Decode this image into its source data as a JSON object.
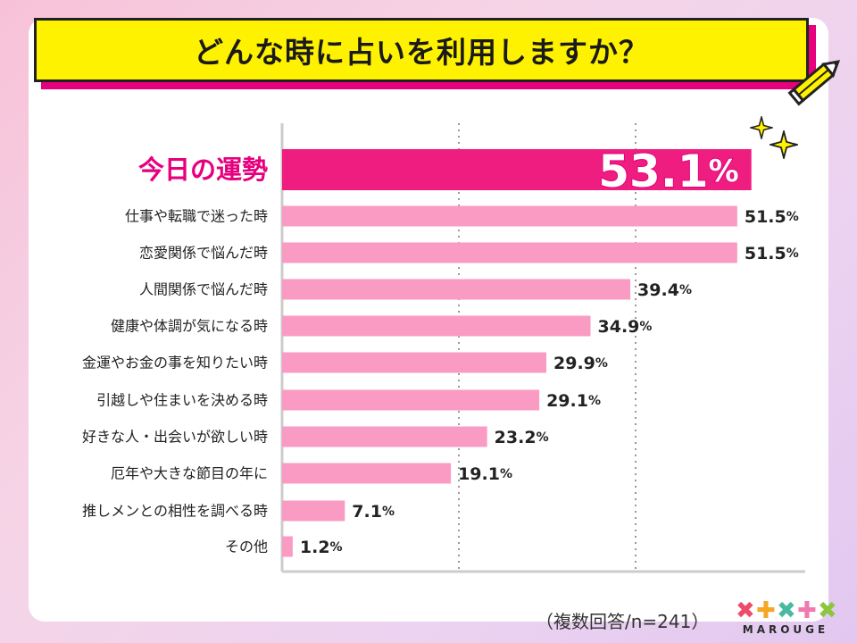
{
  "title": "どんな時に占いを利用しますか？",
  "footnote": "（複数回答/n=241）",
  "logo_text": "MAROUGE",
  "colors": {
    "highlight_bar": "#ee1d7f",
    "bar": "#f99bc3",
    "highlight_label": "#e6007e",
    "title_bg": "#fff200",
    "title_shadow": "#e6007e"
  },
  "chart_data": {
    "type": "bar",
    "orientation": "horizontal",
    "categories": [
      "今日の運勢",
      "仕事や転職で迷った時",
      "恋愛関係で悩んだ時",
      "人間関係で悩んだ時",
      "健康や体調が気になる時",
      "金運やお金の事を知りたい時",
      "引越しや住まいを決める時",
      "好きな人・出会いが欲しい時",
      "厄年や大きな節目の年に",
      "推しメンとの相性を調べる時",
      "その他"
    ],
    "values": [
      53.1,
      51.5,
      51.5,
      39.4,
      34.9,
      29.9,
      29.1,
      23.2,
      19.1,
      7.1,
      1.2
    ],
    "unit": "%",
    "xlim": [
      0,
      60
    ],
    "grid": "vertical dotted lines at 20, 40",
    "highlight_index": 0
  }
}
